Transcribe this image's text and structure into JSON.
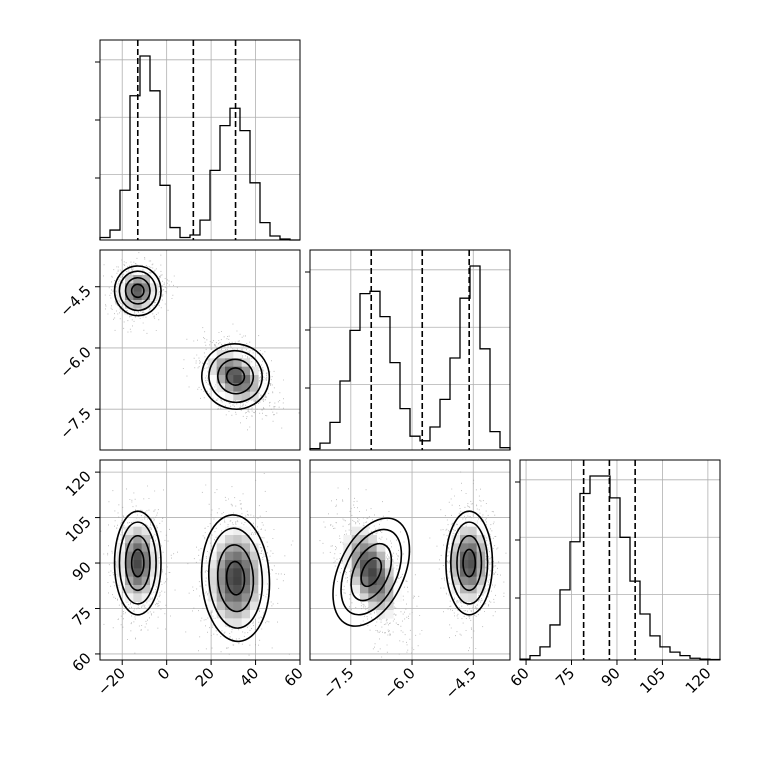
{
  "chart_data": {
    "type": "corner",
    "grid": true,
    "quantile_lines": "dashed",
    "parameters": [
      {
        "index": 0,
        "range": [
          -30,
          60
        ],
        "ticks": [
          -20,
          0,
          20,
          40,
          60
        ],
        "tick_labels": [
          "−20",
          "0",
          "20",
          "40",
          "60"
        ],
        "quantiles": [
          -13,
          12,
          31
        ]
      },
      {
        "index": 1,
        "range": [
          -8.5,
          -3.6
        ],
        "ticks": [
          -4.5,
          -6.0,
          -7.5
        ],
        "tick_labels": [
          "−4.5",
          "−6.0",
          "−7.5"
        ],
        "quantiles": [
          -7.0,
          -5.75,
          -4.6
        ]
      },
      {
        "index": 2,
        "range": [
          58,
          124
        ],
        "ticks": [
          60,
          75,
          90,
          105,
          120
        ],
        "tick_labels": [
          "60",
          "75",
          "90",
          "105",
          "120"
        ],
        "quantiles": [
          79,
          87.5,
          96
        ]
      }
    ],
    "histograms": [
      {
        "param": 0,
        "edges": [
          -30,
          -25.5,
          -21,
          -16.5,
          -12,
          -7.5,
          -3,
          1.5,
          6,
          10.5,
          15,
          19.5,
          24,
          28.5,
          33,
          37.5,
          42,
          46.5,
          51,
          55.5,
          60
        ],
        "counts": [
          5,
          20,
          100,
          290,
          370,
          300,
          110,
          25,
          5,
          10,
          40,
          140,
          230,
          265,
          220,
          115,
          35,
          8,
          2,
          0
        ]
      },
      {
        "param": 1,
        "edges": [
          -8.5,
          -8.255,
          -8.01,
          -7.765,
          -7.52,
          -7.275,
          -7.03,
          -6.785,
          -6.54,
          -6.295,
          -6.05,
          -5.805,
          -5.56,
          -5.315,
          -5.07,
          -4.825,
          -4.58,
          -4.335,
          -4.09,
          -3.845,
          -3.6
        ],
        "counts": [
          3,
          15,
          60,
          150,
          260,
          340,
          345,
          290,
          190,
          90,
          30,
          20,
          50,
          110,
          200,
          330,
          400,
          220,
          40,
          5
        ]
      },
      {
        "param": 2,
        "edges": [
          58,
          61.3,
          64.6,
          67.9,
          71.2,
          74.5,
          77.8,
          81.1,
          84.4,
          87.7,
          91,
          94.3,
          97.6,
          100.9,
          104.2,
          107.5,
          110.8,
          114.1,
          117.4,
          120.7,
          124
        ],
        "counts": [
          2,
          10,
          30,
          80,
          160,
          270,
          380,
          420,
          420,
          370,
          280,
          180,
          105,
          55,
          30,
          18,
          10,
          4,
          2,
          1
        ]
      }
    ],
    "density_peaks": [
      {
        "params": [
          0,
          1
        ],
        "peaks": [
          {
            "x": -13,
            "y": -4.6,
            "sx": 5.5,
            "sy": 0.32,
            "rho": 0.1
          },
          {
            "x": 31,
            "y": -6.7,
            "sx": 8,
            "sy": 0.42,
            "rho": -0.45
          }
        ]
      },
      {
        "params": [
          0,
          2
        ],
        "peaks": [
          {
            "x": -13,
            "y": 90,
            "sx": 5.5,
            "sy": 9,
            "rho": 0
          },
          {
            "x": 31,
            "y": 85,
            "sx": 8,
            "sy": 11,
            "rho": 0.05
          }
        ]
      },
      {
        "params": [
          1,
          2
        ],
        "peaks": [
          {
            "x": -7.0,
            "y": 87,
            "sx": 0.42,
            "sy": 10,
            "rho": -0.5
          },
          {
            "x": -4.6,
            "y": 90,
            "sx": 0.3,
            "sy": 9,
            "rho": 0
          }
        ]
      }
    ]
  }
}
